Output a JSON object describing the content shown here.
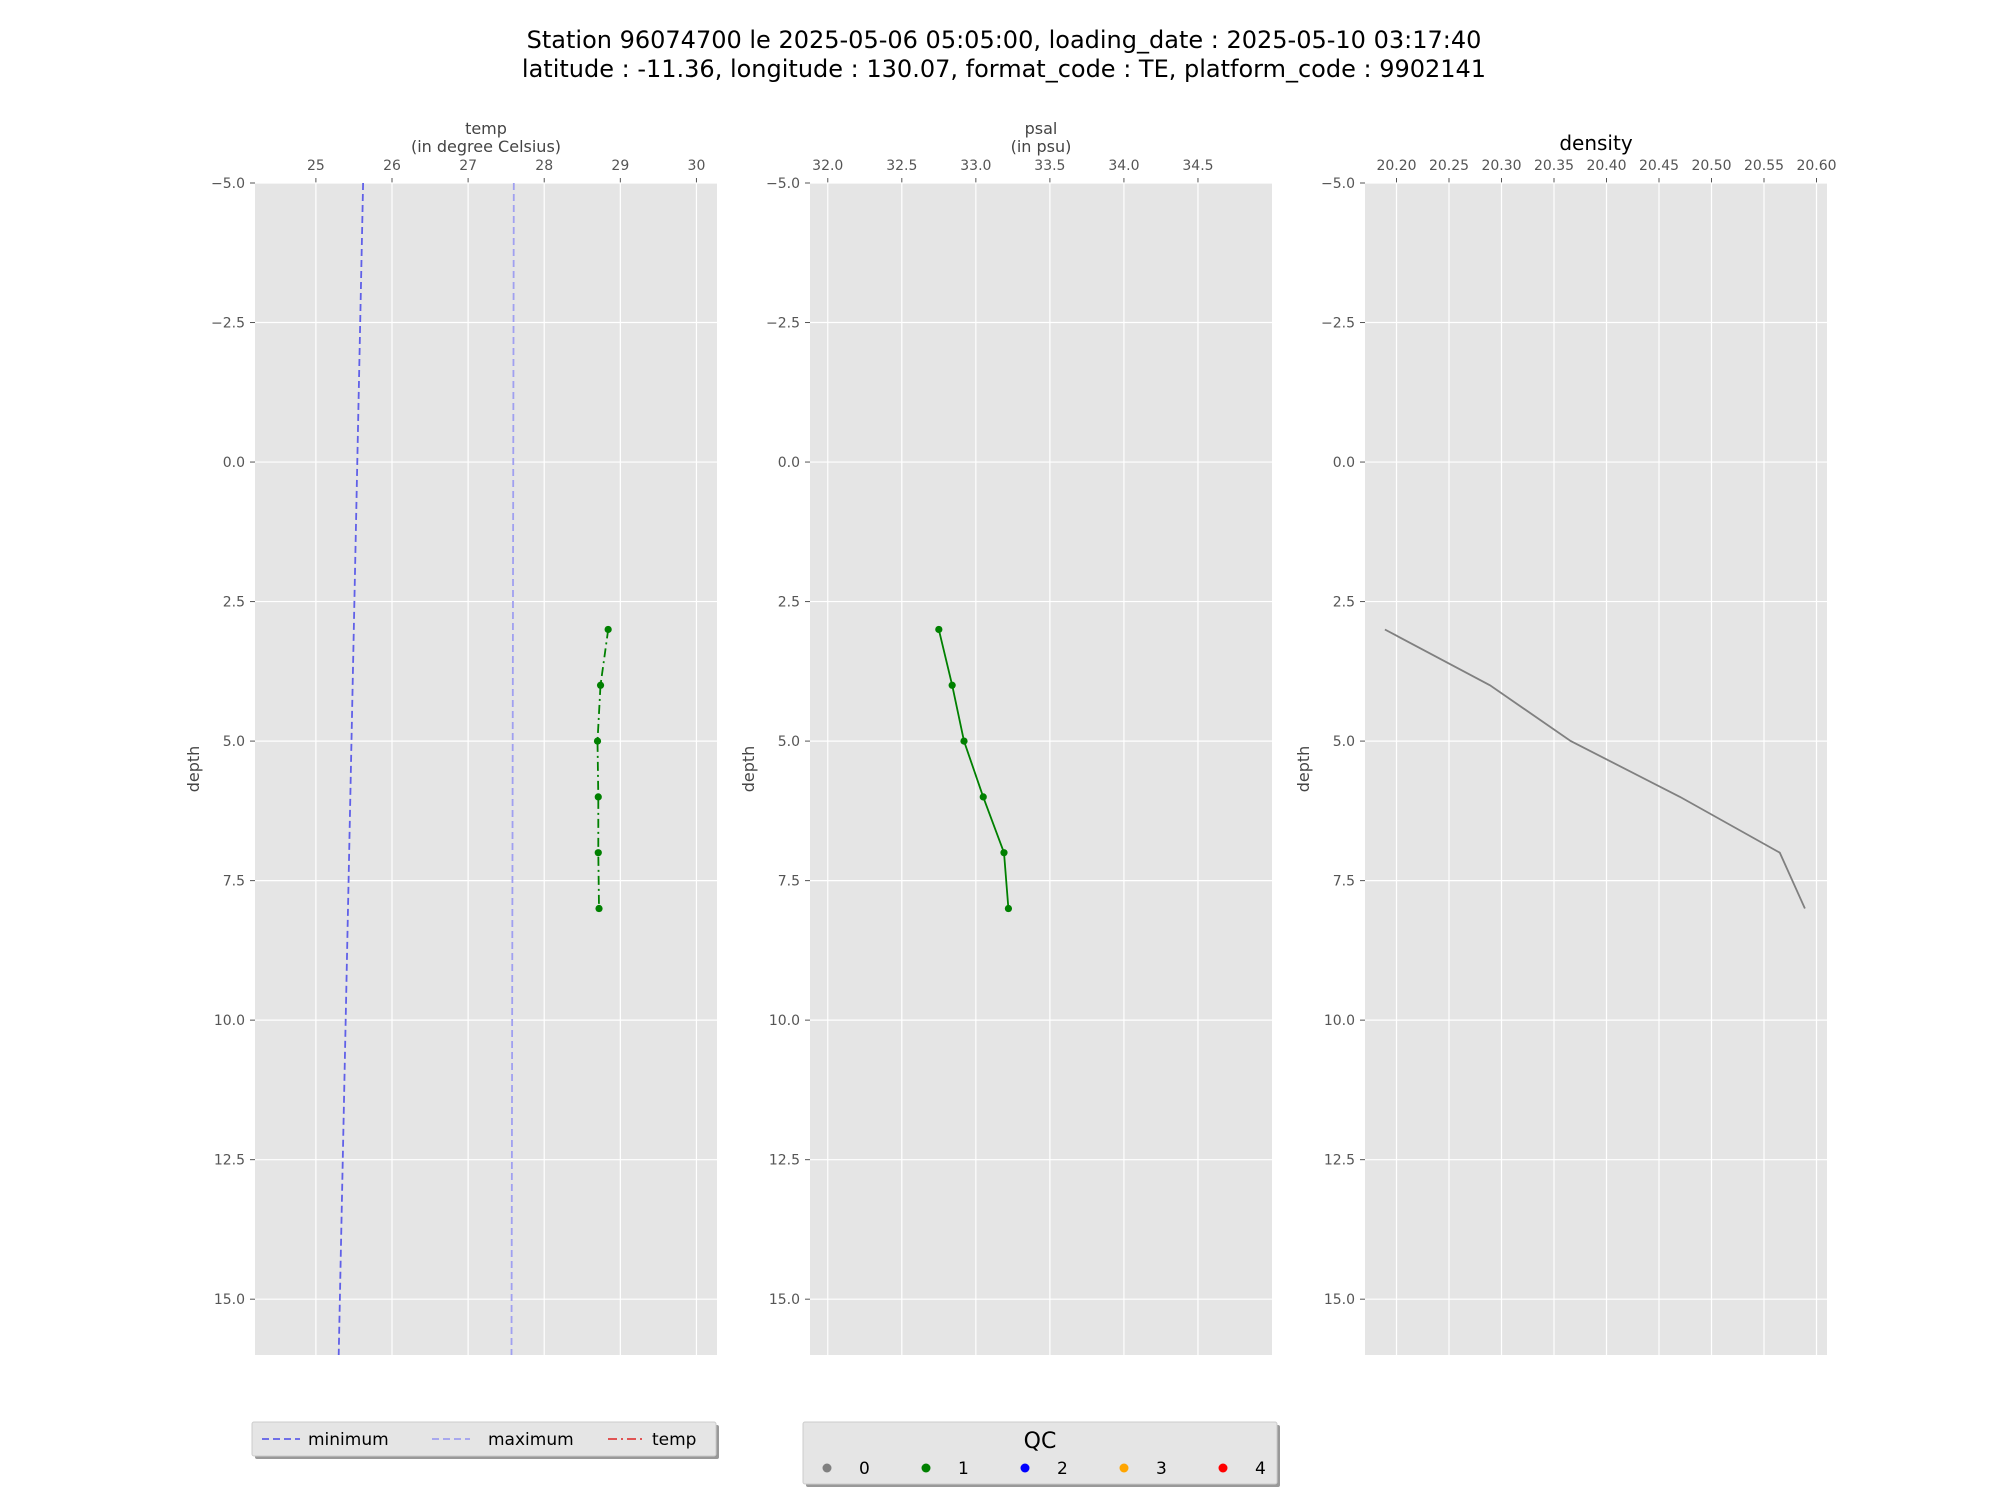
{
  "figure": {
    "title_line1": "Station 96074700 le 2025-05-06 05:05:00, loading_date : 2025-05-10 03:17:40",
    "title_line2": "latitude : -11.36, longitude : 130.07, format_code : TE, platform_code : 9902141"
  },
  "chart_data": [
    {
      "type": "line",
      "title": "temp",
      "subtitle": "(in degree Celsius)",
      "ylabel": "depth",
      "xlim": [
        24.2,
        30.27
      ],
      "ylim": [
        -5.0,
        16.0
      ],
      "y_inverted": true,
      "grid": true,
      "xticks": [
        25,
        26,
        27,
        28,
        29,
        30
      ],
      "xtick_labels": [
        "25",
        "26",
        "27",
        "28",
        "29",
        "30"
      ],
      "yticks": [
        -5.0,
        -2.5,
        0.0,
        2.5,
        5.0,
        7.5,
        10.0,
        12.5,
        15.0
      ],
      "ytick_labels": [
        "−5.0",
        "−2.5",
        "0.0",
        "2.5",
        "5.0",
        "7.5",
        "10.0",
        "12.5",
        "15.0"
      ],
      "legend_position": "below",
      "series": [
        {
          "name": "minimum",
          "color": "#6060e8",
          "style": "dashed",
          "x": [
            25.62,
            25.3
          ],
          "y": [
            -5.0,
            16.0
          ]
        },
        {
          "name": "maximum",
          "color": "#a0a0f0",
          "style": "dashed",
          "x": [
            27.6,
            27.57
          ],
          "y": [
            -5.0,
            16.0
          ]
        },
        {
          "name": "temp",
          "color": "#008000",
          "style": "dashdot",
          "marker": "dot",
          "x": [
            28.84,
            28.74,
            28.7,
            28.71,
            28.71,
            28.72
          ],
          "y": [
            3.0,
            4.0,
            5.0,
            6.0,
            7.0,
            8.0
          ],
          "qc": [
            1,
            1,
            1,
            1,
            1,
            1
          ]
        }
      ]
    },
    {
      "type": "line",
      "title": "psal",
      "subtitle": "(in psu)",
      "ylabel": "depth",
      "xlim": [
        31.88,
        35.0
      ],
      "ylim": [
        -5.0,
        16.0
      ],
      "y_inverted": true,
      "grid": true,
      "xticks": [
        32.0,
        32.5,
        33.0,
        33.5,
        34.0,
        34.5
      ],
      "xtick_labels": [
        "32.0",
        "32.5",
        "33.0",
        "33.5",
        "34.0",
        "34.5"
      ],
      "yticks": [
        -5.0,
        -2.5,
        0.0,
        2.5,
        5.0,
        7.5,
        10.0,
        12.5,
        15.0
      ],
      "ytick_labels": [
        "−5.0",
        "−2.5",
        "0.0",
        "2.5",
        "5.0",
        "7.5",
        "10.0",
        "12.5",
        "15.0"
      ],
      "series": [
        {
          "name": "psal",
          "color": "#008000",
          "style": "solid",
          "marker": "dot",
          "x": [
            32.75,
            32.84,
            32.92,
            33.05,
            33.19,
            33.22
          ],
          "y": [
            3.0,
            4.0,
            5.0,
            6.0,
            7.0,
            8.0
          ],
          "qc": [
            1,
            1,
            1,
            1,
            1,
            1
          ]
        }
      ]
    },
    {
      "type": "line",
      "title": "density",
      "ylabel": "depth",
      "xlim": [
        20.17,
        20.61
      ],
      "ylim": [
        -5.0,
        16.0
      ],
      "y_inverted": true,
      "grid": true,
      "xticks": [
        20.2,
        20.25,
        20.3,
        20.35,
        20.4,
        20.45,
        20.5,
        20.55,
        20.6
      ],
      "xtick_labels": [
        "20.20",
        "20.25",
        "20.30",
        "20.35",
        "20.40",
        "20.45",
        "20.50",
        "20.55",
        "20.60"
      ],
      "yticks": [
        -5.0,
        -2.5,
        0.0,
        2.5,
        5.0,
        7.5,
        10.0,
        12.5,
        15.0
      ],
      "ytick_labels": [
        "−5.0",
        "−2.5",
        "0.0",
        "2.5",
        "5.0",
        "7.5",
        "10.0",
        "12.5",
        "15.0"
      ],
      "series": [
        {
          "name": "density",
          "color": "#808080",
          "style": "solid",
          "x": [
            20.189,
            20.289,
            20.366,
            20.47,
            20.565,
            20.589
          ],
          "y": [
            3.0,
            4.0,
            5.0,
            6.0,
            7.0,
            8.0
          ]
        }
      ]
    }
  ],
  "legend_lines": {
    "items": [
      {
        "label": "minimum",
        "color": "#6060e8",
        "style": "dashed"
      },
      {
        "label": "maximum",
        "color": "#a0a0f0",
        "style": "dashed"
      },
      {
        "label": "temp",
        "color": "#e04040",
        "style": "dashdot"
      }
    ]
  },
  "legend_qc": {
    "title": "QC",
    "items": [
      {
        "label": "0",
        "color": "#808080"
      },
      {
        "label": "1",
        "color": "#008000"
      },
      {
        "label": "2",
        "color": "#0000ff"
      },
      {
        "label": "3",
        "color": "#ffa500"
      },
      {
        "label": "4",
        "color": "#ff0000"
      }
    ]
  }
}
